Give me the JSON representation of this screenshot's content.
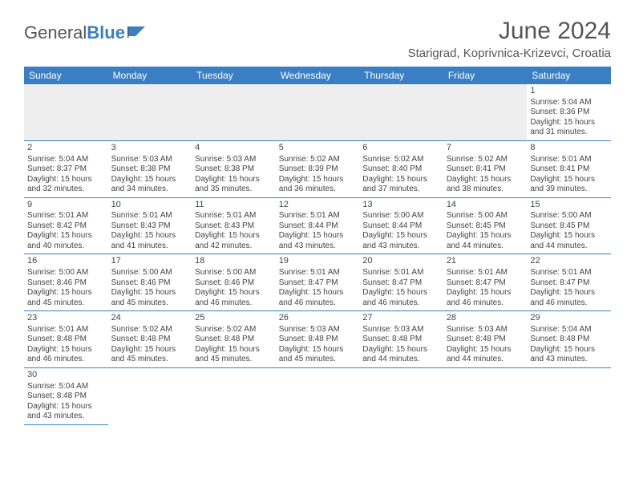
{
  "logo": {
    "text1": "General",
    "text2": "Blue"
  },
  "title": "June 2024",
  "subtitle": "Starigrad, Koprivnica-Krizevci, Croatia",
  "colors": {
    "header_bg": "#3a7fc4",
    "header_fg": "#ffffff",
    "border": "#3a7fc4",
    "empty_bg": "#eeeeee",
    "text": "#444444"
  },
  "weekdays": [
    "Sunday",
    "Monday",
    "Tuesday",
    "Wednesday",
    "Thursday",
    "Friday",
    "Saturday"
  ],
  "weeks": [
    [
      null,
      null,
      null,
      null,
      null,
      null,
      {
        "d": "1",
        "sr": "5:04 AM",
        "ss": "8:36 PM",
        "dl": "15 hours and 31 minutes."
      }
    ],
    [
      {
        "d": "2",
        "sr": "5:04 AM",
        "ss": "8:37 PM",
        "dl": "15 hours and 32 minutes."
      },
      {
        "d": "3",
        "sr": "5:03 AM",
        "ss": "8:38 PM",
        "dl": "15 hours and 34 minutes."
      },
      {
        "d": "4",
        "sr": "5:03 AM",
        "ss": "8:38 PM",
        "dl": "15 hours and 35 minutes."
      },
      {
        "d": "5",
        "sr": "5:02 AM",
        "ss": "8:39 PM",
        "dl": "15 hours and 36 minutes."
      },
      {
        "d": "6",
        "sr": "5:02 AM",
        "ss": "8:40 PM",
        "dl": "15 hours and 37 minutes."
      },
      {
        "d": "7",
        "sr": "5:02 AM",
        "ss": "8:41 PM",
        "dl": "15 hours and 38 minutes."
      },
      {
        "d": "8",
        "sr": "5:01 AM",
        "ss": "8:41 PM",
        "dl": "15 hours and 39 minutes."
      }
    ],
    [
      {
        "d": "9",
        "sr": "5:01 AM",
        "ss": "8:42 PM",
        "dl": "15 hours and 40 minutes."
      },
      {
        "d": "10",
        "sr": "5:01 AM",
        "ss": "8:43 PM",
        "dl": "15 hours and 41 minutes."
      },
      {
        "d": "11",
        "sr": "5:01 AM",
        "ss": "8:43 PM",
        "dl": "15 hours and 42 minutes."
      },
      {
        "d": "12",
        "sr": "5:01 AM",
        "ss": "8:44 PM",
        "dl": "15 hours and 43 minutes."
      },
      {
        "d": "13",
        "sr": "5:00 AM",
        "ss": "8:44 PM",
        "dl": "15 hours and 43 minutes."
      },
      {
        "d": "14",
        "sr": "5:00 AM",
        "ss": "8:45 PM",
        "dl": "15 hours and 44 minutes."
      },
      {
        "d": "15",
        "sr": "5:00 AM",
        "ss": "8:45 PM",
        "dl": "15 hours and 44 minutes."
      }
    ],
    [
      {
        "d": "16",
        "sr": "5:00 AM",
        "ss": "8:46 PM",
        "dl": "15 hours and 45 minutes."
      },
      {
        "d": "17",
        "sr": "5:00 AM",
        "ss": "8:46 PM",
        "dl": "15 hours and 45 minutes."
      },
      {
        "d": "18",
        "sr": "5:00 AM",
        "ss": "8:46 PM",
        "dl": "15 hours and 46 minutes."
      },
      {
        "d": "19",
        "sr": "5:01 AM",
        "ss": "8:47 PM",
        "dl": "15 hours and 46 minutes."
      },
      {
        "d": "20",
        "sr": "5:01 AM",
        "ss": "8:47 PM",
        "dl": "15 hours and 46 minutes."
      },
      {
        "d": "21",
        "sr": "5:01 AM",
        "ss": "8:47 PM",
        "dl": "15 hours and 46 minutes."
      },
      {
        "d": "22",
        "sr": "5:01 AM",
        "ss": "8:47 PM",
        "dl": "15 hours and 46 minutes."
      }
    ],
    [
      {
        "d": "23",
        "sr": "5:01 AM",
        "ss": "8:48 PM",
        "dl": "15 hours and 46 minutes."
      },
      {
        "d": "24",
        "sr": "5:02 AM",
        "ss": "8:48 PM",
        "dl": "15 hours and 45 minutes."
      },
      {
        "d": "25",
        "sr": "5:02 AM",
        "ss": "8:48 PM",
        "dl": "15 hours and 45 minutes."
      },
      {
        "d": "26",
        "sr": "5:03 AM",
        "ss": "8:48 PM",
        "dl": "15 hours and 45 minutes."
      },
      {
        "d": "27",
        "sr": "5:03 AM",
        "ss": "8:48 PM",
        "dl": "15 hours and 44 minutes."
      },
      {
        "d": "28",
        "sr": "5:03 AM",
        "ss": "8:48 PM",
        "dl": "15 hours and 44 minutes."
      },
      {
        "d": "29",
        "sr": "5:04 AM",
        "ss": "8:48 PM",
        "dl": "15 hours and 43 minutes."
      }
    ],
    [
      {
        "d": "30",
        "sr": "5:04 AM",
        "ss": "8:48 PM",
        "dl": "15 hours and 43 minutes."
      },
      null,
      null,
      null,
      null,
      null,
      null
    ]
  ],
  "labels": {
    "sunrise": "Sunrise: ",
    "sunset": "Sunset: ",
    "daylight": "Daylight: "
  }
}
